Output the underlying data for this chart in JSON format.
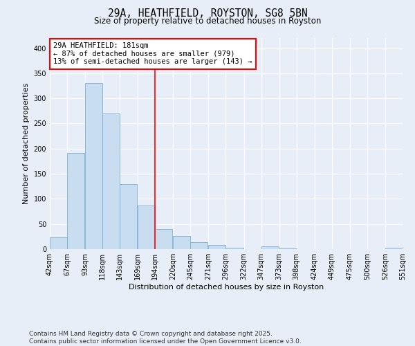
{
  "title": "29A, HEATHFIELD, ROYSTON, SG8 5BN",
  "subtitle": "Size of property relative to detached houses in Royston",
  "xlabel": "Distribution of detached houses by size in Royston",
  "ylabel": "Number of detached properties",
  "footer_line1": "Contains HM Land Registry data © Crown copyright and database right 2025.",
  "footer_line2": "Contains public sector information licensed under the Open Government Licence v3.0.",
  "bar_color": "#c9ddf0",
  "bar_edge_color": "#7bafd4",
  "background_color": "#e8eef8",
  "grid_color": "#ffffff",
  "annotation_line1": "29A HEATHFIELD: 181sqm",
  "annotation_line2": "← 87% of detached houses are smaller (979)",
  "annotation_line3": "13% of semi-detached houses are larger (143) →",
  "annotation_box_color": "white",
  "annotation_border_color": "red",
  "vline_color": "red",
  "bins": [
    42,
    67,
    93,
    118,
    143,
    169,
    194,
    220,
    245,
    271,
    296,
    322,
    347,
    373,
    398,
    424,
    449,
    475,
    500,
    526,
    551
  ],
  "bar_heights": [
    23,
    192,
    330,
    270,
    130,
    87,
    40,
    26,
    14,
    8,
    3,
    0,
    5,
    2,
    0,
    0,
    0,
    0,
    0,
    3
  ],
  "vline_x_bin_index": 5,
  "ylim": [
    0,
    420
  ],
  "yticks": [
    0,
    50,
    100,
    150,
    200,
    250,
    300,
    350,
    400
  ],
  "title_fontsize": 10.5,
  "subtitle_fontsize": 8.5,
  "axis_label_fontsize": 8,
  "tick_fontsize": 7,
  "footer_fontsize": 6.5,
  "annotation_fontsize": 7.5
}
